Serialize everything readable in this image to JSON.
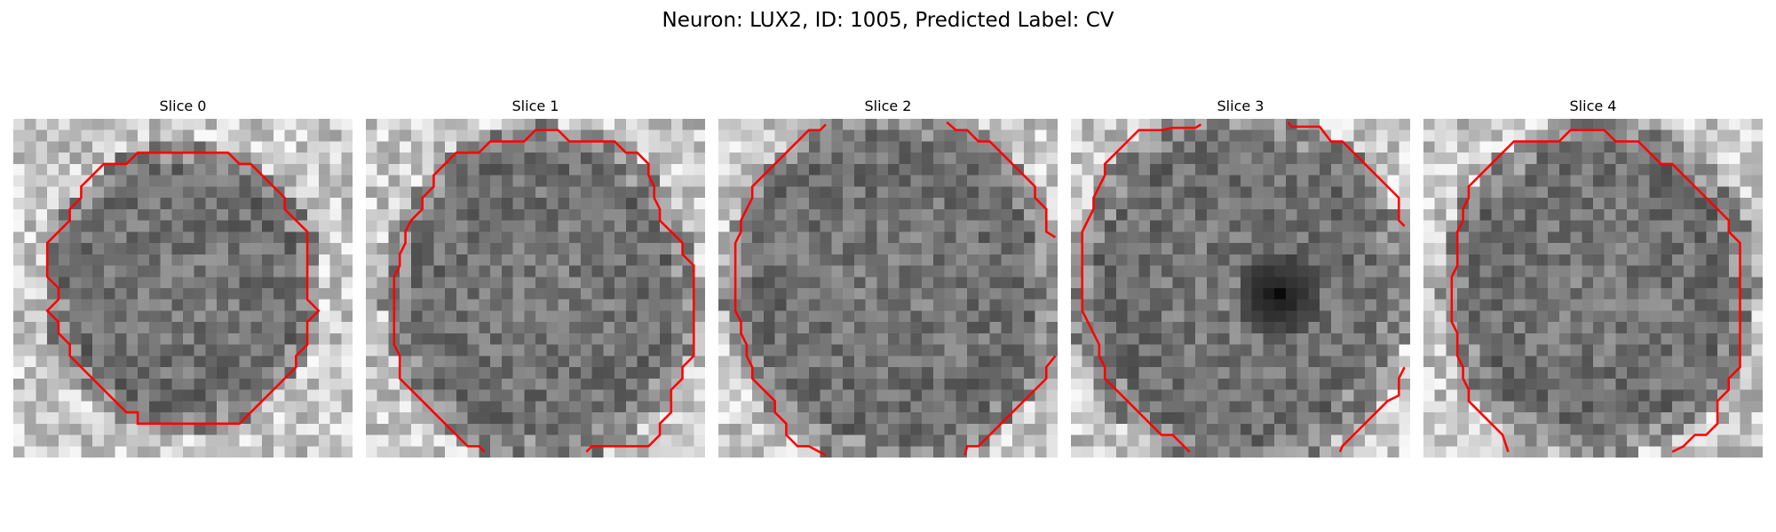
{
  "figure": {
    "title": "Neuron: LUX2, ID: 1005, Predicted Label: CV"
  },
  "panels": [
    {
      "title": "Slice 0"
    },
    {
      "title": "Slice 1"
    },
    {
      "title": "Slice 2"
    },
    {
      "title": "Slice 3"
    },
    {
      "title": "Slice 4"
    }
  ],
  "colors": {
    "contour": "#ff0000",
    "background": "#ffffff"
  }
}
